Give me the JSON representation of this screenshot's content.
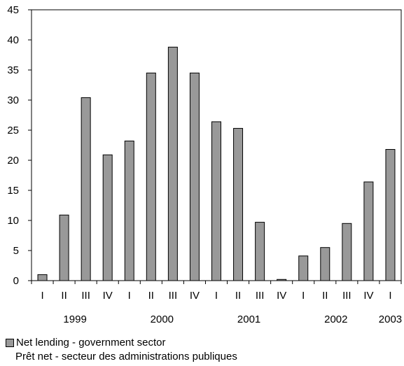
{
  "chart_data": {
    "type": "bar",
    "title": "",
    "xlabel": "",
    "ylabel": "",
    "ylim": [
      0,
      45
    ],
    "yticks": [
      0,
      5,
      10,
      15,
      20,
      25,
      30,
      35,
      40,
      45
    ],
    "categories": [
      "I",
      "II",
      "III",
      "IV",
      "I",
      "II",
      "III",
      "IV",
      "I",
      "II",
      "III",
      "IV",
      "I",
      "II",
      "III",
      "IV",
      "I"
    ],
    "years": [
      {
        "label": "1999",
        "start": 0,
        "end": 3
      },
      {
        "label": "2000",
        "start": 4,
        "end": 7
      },
      {
        "label": "2001",
        "start": 8,
        "end": 11
      },
      {
        "label": "2002",
        "start": 12,
        "end": 15
      },
      {
        "label": "2003",
        "start": 16,
        "end": 16
      }
    ],
    "series": [
      {
        "name": "Net lending - government sector",
        "name_fr": "Prêt net - secteur des administrations publiques",
        "color": "#999999",
        "values": [
          1.0,
          10.9,
          30.4,
          20.9,
          23.2,
          34.5,
          38.8,
          34.5,
          26.4,
          25.3,
          9.7,
          0.2,
          4.1,
          5.5,
          9.5,
          16.4,
          21.8
        ]
      }
    ],
    "legend_position": "bottom-left",
    "grid": false
  }
}
